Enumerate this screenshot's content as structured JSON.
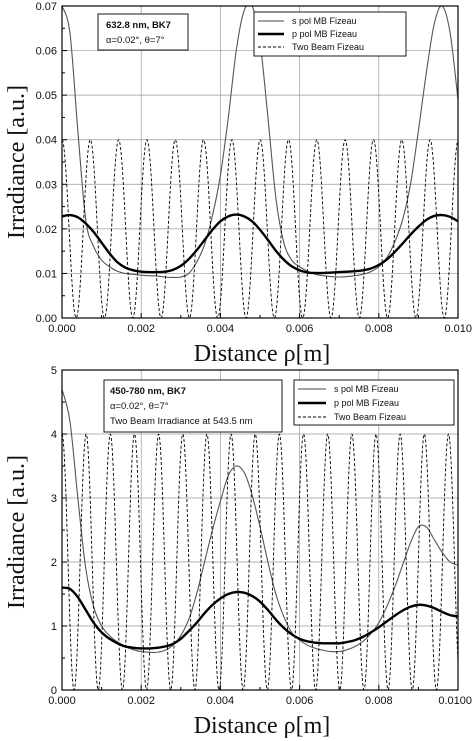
{
  "chart_data": [
    {
      "type": "line",
      "xlabel": "Distance ρ[m]",
      "ylabel": "Irradiance [a.u.]",
      "xlim": [
        0,
        0.01
      ],
      "ylim": [
        0,
        0.07
      ],
      "x_ticks": [
        "0.000",
        "0.002",
        "0.004",
        "0.006",
        "0.008",
        "0.010"
      ],
      "y_ticks": [
        "0.00",
        "0.01",
        "0.02",
        "0.03",
        "0.04",
        "0.05",
        "0.06",
        "0.07"
      ],
      "x_tick_values": [
        0,
        0.002,
        0.004,
        0.006,
        0.008,
        0.01
      ],
      "y_tick_values": [
        0,
        0.01,
        0.02,
        0.03,
        0.04,
        0.05,
        0.06,
        0.07
      ],
      "grid": true,
      "legend_position": "top-right",
      "annotation": [
        "632.8 nm, BK7",
        "α=0.02°, θ=7°"
      ],
      "series": [
        {
          "name": "s pol MB Fizeau",
          "style": "thin-solid",
          "x": [
            0.0,
            0.0002,
            0.0004,
            0.0006,
            0.0008,
            0.001,
            0.0012,
            0.0014,
            0.0016,
            0.0018,
            0.002,
            0.0022,
            0.0024,
            0.0026,
            0.0028,
            0.003,
            0.0032,
            0.0034,
            0.0036,
            0.0038,
            0.004,
            0.0042,
            0.0044,
            0.0046,
            0.0048,
            0.005,
            0.0052,
            0.0054,
            0.0056,
            0.0058,
            0.006,
            0.0062,
            0.0064,
            0.0066,
            0.0068,
            0.007,
            0.0072,
            0.0074,
            0.0076,
            0.0078,
            0.008,
            0.0082,
            0.0084,
            0.0086,
            0.0088,
            0.009,
            0.0092,
            0.0094,
            0.0096,
            0.0098,
            0.01
          ],
          "y": [
            0.07,
            0.064,
            0.042,
            0.022,
            0.016,
            0.013,
            0.0115,
            0.0105,
            0.01,
            0.0098,
            0.0096,
            0.0095,
            0.0094,
            0.0092,
            0.0091,
            0.0092,
            0.01,
            0.0125,
            0.0165,
            0.023,
            0.032,
            0.045,
            0.06,
            0.069,
            0.07,
            0.062,
            0.045,
            0.027,
            0.017,
            0.013,
            0.0115,
            0.0105,
            0.0098,
            0.0095,
            0.0093,
            0.0092,
            0.0093,
            0.0095,
            0.0098,
            0.0104,
            0.0115,
            0.0135,
            0.017,
            0.022,
            0.03,
            0.042,
            0.055,
            0.066,
            0.07,
            0.064,
            0.049
          ]
        },
        {
          "name": "p pol MB Fizeau",
          "style": "thick-solid",
          "x": [
            0.0,
            0.0002,
            0.0004,
            0.0006,
            0.0008,
            0.001,
            0.0012,
            0.0014,
            0.0016,
            0.0018,
            0.002,
            0.0022,
            0.0024,
            0.0026,
            0.0028,
            0.003,
            0.0032,
            0.0034,
            0.0036,
            0.0038,
            0.004,
            0.0042,
            0.0044,
            0.0046,
            0.0048,
            0.005,
            0.0052,
            0.0054,
            0.0056,
            0.0058,
            0.006,
            0.0062,
            0.0064,
            0.0066,
            0.0068,
            0.007,
            0.0072,
            0.0074,
            0.0076,
            0.0078,
            0.008,
            0.0082,
            0.0084,
            0.0086,
            0.0088,
            0.009,
            0.0092,
            0.0094,
            0.0096,
            0.0098,
            0.01
          ],
          "y": [
            0.0228,
            0.0231,
            0.0226,
            0.0212,
            0.0193,
            0.0169,
            0.0145,
            0.0125,
            0.0113,
            0.0107,
            0.0104,
            0.0103,
            0.0103,
            0.0104,
            0.0108,
            0.0117,
            0.0132,
            0.0152,
            0.0175,
            0.0198,
            0.0217,
            0.0228,
            0.0232,
            0.0228,
            0.0217,
            0.0198,
            0.0175,
            0.0151,
            0.0131,
            0.0116,
            0.0107,
            0.0102,
            0.0101,
            0.0101,
            0.0102,
            0.0103,
            0.0104,
            0.0105,
            0.0107,
            0.0111,
            0.0119,
            0.0131,
            0.0148,
            0.0167,
            0.0187,
            0.0205,
            0.022,
            0.0229,
            0.0231,
            0.0227,
            0.0217
          ]
        },
        {
          "name": "Two Beam Fizeau",
          "style": "dashed",
          "function": "cos2",
          "amplitude": 0.04,
          "period": 0.000715,
          "phase_x": 0.0
        }
      ]
    },
    {
      "type": "line",
      "xlabel": "Distance ρ[m]",
      "ylabel": "Irradiance [a.u.]",
      "xlim": [
        0,
        0.01
      ],
      "ylim": [
        0,
        5
      ],
      "x_ticks": [
        "0.000",
        "0.002",
        "0.004",
        "0.006",
        "0.008",
        "0.0100"
      ],
      "y_ticks": [
        "0",
        "1",
        "2",
        "3",
        "4",
        "5"
      ],
      "x_tick_values": [
        0,
        0.002,
        0.004,
        0.006,
        0.008,
        0.01
      ],
      "y_tick_values": [
        0,
        1,
        2,
        3,
        4,
        5
      ],
      "grid": true,
      "legend_position": "top-right",
      "annotation": [
        "450-780 nm, BK7",
        "α=0.02°, θ=7°",
        "Two Beam Irradiance at 543.5 nm"
      ],
      "series": [
        {
          "name": "s pol MB Fizeau",
          "style": "thin-solid",
          "x": [
            0.0,
            0.0002,
            0.0004,
            0.0006,
            0.0008,
            0.001,
            0.0012,
            0.0014,
            0.0016,
            0.0018,
            0.002,
            0.0022,
            0.0024,
            0.0026,
            0.0028,
            0.003,
            0.0032,
            0.0034,
            0.0036,
            0.0038,
            0.004,
            0.0042,
            0.0044,
            0.0046,
            0.0048,
            0.005,
            0.0052,
            0.0054,
            0.0056,
            0.0058,
            0.006,
            0.0062,
            0.0064,
            0.0066,
            0.0068,
            0.007,
            0.0072,
            0.0074,
            0.0076,
            0.0078,
            0.008,
            0.0082,
            0.0084,
            0.0086,
            0.0088,
            0.009,
            0.0092,
            0.0094,
            0.0096,
            0.0098,
            0.01
          ],
          "y": [
            4.7,
            4.2,
            3.0,
            1.9,
            1.3,
            1.0,
            0.85,
            0.75,
            0.68,
            0.63,
            0.6,
            0.59,
            0.59,
            0.62,
            0.7,
            0.85,
            1.1,
            1.5,
            2.0,
            2.5,
            2.95,
            3.35,
            3.5,
            3.4,
            3.05,
            2.55,
            2.0,
            1.5,
            1.15,
            0.9,
            0.78,
            0.7,
            0.65,
            0.62,
            0.6,
            0.6,
            0.63,
            0.68,
            0.76,
            0.88,
            1.05,
            1.3,
            1.6,
            1.95,
            2.3,
            2.55,
            2.55,
            2.35,
            2.15,
            2.0,
            1.95
          ]
        },
        {
          "name": "p pol MB Fizeau",
          "style": "thick-solid",
          "x": [
            0.0,
            0.0002,
            0.0004,
            0.0006,
            0.0008,
            0.001,
            0.0012,
            0.0014,
            0.0016,
            0.0018,
            0.002,
            0.0022,
            0.0024,
            0.0026,
            0.0028,
            0.003,
            0.0032,
            0.0034,
            0.0036,
            0.0038,
            0.004,
            0.0042,
            0.0044,
            0.0046,
            0.0048,
            0.005,
            0.0052,
            0.0054,
            0.0056,
            0.0058,
            0.006,
            0.0062,
            0.0064,
            0.0066,
            0.0068,
            0.007,
            0.0072,
            0.0074,
            0.0076,
            0.0078,
            0.008,
            0.0082,
            0.0084,
            0.0086,
            0.0088,
            0.009,
            0.0092,
            0.0094,
            0.0096,
            0.0098,
            0.01
          ],
          "y": [
            1.6,
            1.58,
            1.45,
            1.25,
            1.05,
            0.9,
            0.8,
            0.73,
            0.68,
            0.66,
            0.65,
            0.65,
            0.66,
            0.68,
            0.72,
            0.8,
            0.92,
            1.05,
            1.2,
            1.33,
            1.43,
            1.5,
            1.53,
            1.52,
            1.47,
            1.38,
            1.25,
            1.1,
            0.97,
            0.87,
            0.8,
            0.76,
            0.74,
            0.73,
            0.73,
            0.73,
            0.75,
            0.78,
            0.83,
            0.9,
            0.98,
            1.07,
            1.16,
            1.24,
            1.3,
            1.33,
            1.32,
            1.28,
            1.22,
            1.17,
            1.15
          ]
        },
        {
          "name": "Two Beam Fizeau",
          "style": "dashed",
          "function": "cos2",
          "amplitude": 4.0,
          "period": 0.00061,
          "phase_x": 0.0
        }
      ]
    }
  ]
}
